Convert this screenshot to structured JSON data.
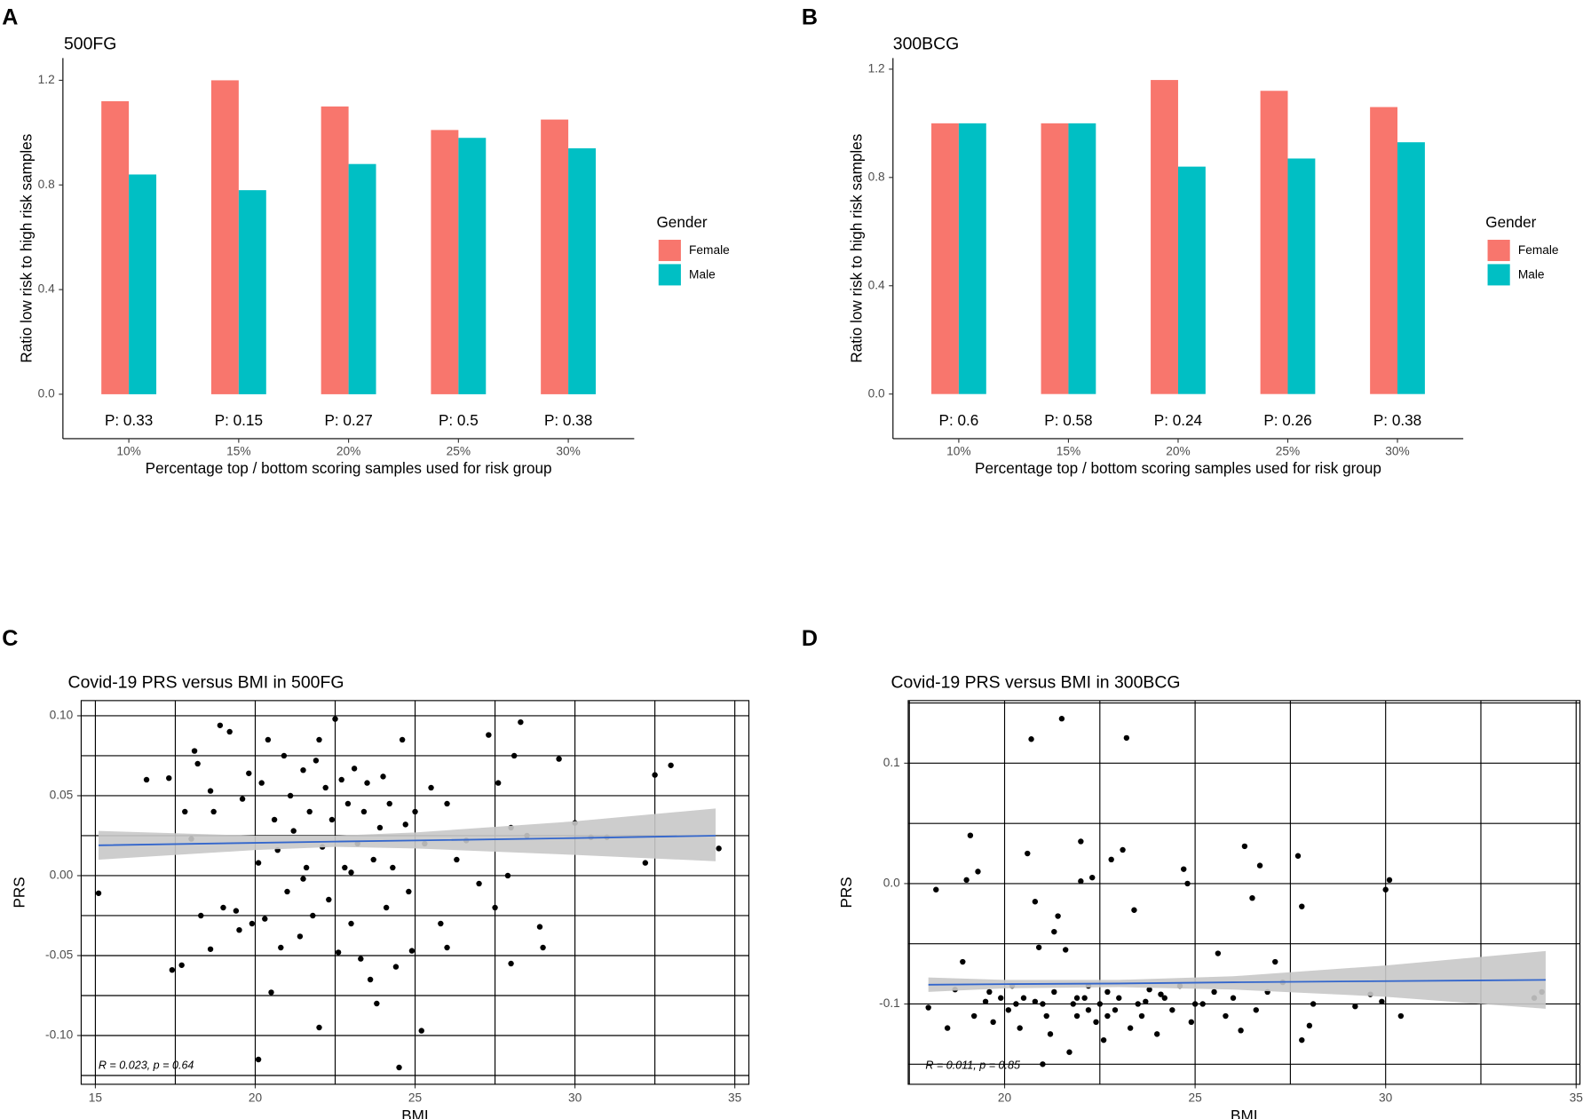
{
  "chart_data": [
    {
      "type": "bar",
      "panel": "A",
      "title": "500FG",
      "xlabel": "Percentage top / bottom scoring samples used for risk group",
      "ylabel": "Ratio low risk to high risk samples",
      "categories": [
        "10%",
        "15%",
        "20%",
        "25%",
        "30%"
      ],
      "series": [
        {
          "name": "Female",
          "color": "#f8766d",
          "values": [
            1.12,
            1.2,
            1.1,
            1.01,
            1.05
          ]
        },
        {
          "name": "Male",
          "color": "#00bfc4",
          "values": [
            0.84,
            0.78,
            0.88,
            0.98,
            0.94
          ]
        }
      ],
      "annotations": [
        "P: 0.33",
        "P: 0.15",
        "P: 0.27",
        "P: 0.5",
        "P: 0.38"
      ],
      "legend_title": "Gender",
      "legend": "right",
      "ylim": [
        -0.17,
        1.285
      ],
      "yticks": [
        {
          "value": 0,
          "label": "0.0"
        },
        {
          "value": 0.4,
          "label": "0.4"
        },
        {
          "value": 0.8,
          "label": "0.8"
        },
        {
          "value": 1.2,
          "label": "1.2"
        }
      ]
    },
    {
      "type": "bar",
      "panel": "B",
      "title": "300BCG",
      "xlabel": "Percentage top / bottom scoring samples used for risk group",
      "ylabel": "Ratio low risk to high risk samples",
      "categories": [
        "10%",
        "15%",
        "20%",
        "25%",
        "30%"
      ],
      "series": [
        {
          "name": "Female",
          "color": "#f8766d",
          "values": [
            1.0,
            1.0,
            1.16,
            1.12,
            1.06
          ]
        },
        {
          "name": "Male",
          "color": "#00bfc4",
          "values": [
            1.0,
            1.0,
            0.84,
            0.87,
            0.93
          ]
        }
      ],
      "annotations": [
        "P: 0.6",
        "P: 0.58",
        "P: 0.24",
        "P: 0.26",
        "P: 0.38"
      ],
      "legend_title": "Gender",
      "legend": "right",
      "ylim": [
        -0.165,
        1.241
      ],
      "yticks": [
        {
          "value": 0,
          "label": "0.0"
        },
        {
          "value": 0.4,
          "label": "0.4"
        },
        {
          "value": 0.8,
          "label": "0.8"
        },
        {
          "value": 1.2,
          "label": "1.2"
        }
      ]
    },
    {
      "type": "scatter",
      "panel": "C",
      "title": "Covid-19 PRS versus BMI in 500FG",
      "xlabel": "BMI",
      "ylabel": "PRS",
      "annotation": "R = 0.023, p = 0.64",
      "color": "#000000",
      "fit_color": "#3366cc",
      "band_color": "#c8c8c8",
      "grid": true,
      "xlim": [
        14.556,
        35.44
      ],
      "ylim": [
        -0.1305,
        0.1095
      ],
      "xticks": [
        15,
        20,
        25,
        30,
        35
      ],
      "xminor": [
        17.5,
        22.5,
        27.5,
        32.5
      ],
      "yticks": [
        {
          "value": -0.1,
          "label": "-0.10"
        },
        {
          "value": -0.05,
          "label": "-0.05"
        },
        {
          "value": 0,
          "label": "0.00"
        },
        {
          "value": 0.05,
          "label": "0.05"
        },
        {
          "value": 0.1,
          "label": "0.10"
        }
      ],
      "yminor": [
        -0.125,
        -0.075,
        -0.025,
        0.025,
        0.075
      ],
      "x": [
        15.1,
        16.6,
        17.3,
        17.4,
        17.7,
        17.8,
        18.0,
        18.1,
        18.2,
        18.3,
        18.6,
        18.6,
        18.9,
        19.2,
        18.7,
        19.0,
        19.4,
        19.5,
        19.6,
        19.8,
        19.9,
        20.1,
        20.2,
        20.3,
        20.4,
        20.5,
        20.6,
        20.7,
        20.8,
        20.9,
        21.0,
        21.1,
        21.2,
        21.4,
        21.5,
        21.6,
        21.7,
        21.8,
        21.9,
        22.0,
        22.1,
        22.2,
        22.3,
        22.4,
        22.5,
        22.6,
        22.7,
        22.8,
        22.9,
        23.0,
        23.1,
        23.2,
        23.3,
        23.4,
        23.5,
        23.6,
        23.7,
        23.8,
        23.9,
        24.0,
        24.1,
        24.2,
        24.3,
        24.4,
        24.5,
        24.6,
        24.7,
        24.8,
        24.9,
        25.0,
        25.2,
        25.3,
        25.5,
        25.8,
        26.0,
        26.3,
        26.6,
        27.0,
        27.3,
        27.5,
        27.6,
        28.0,
        28.1,
        28.3,
        28.5,
        28.9,
        29.0,
        29.5,
        30.0,
        30.5,
        31.0,
        32.2,
        32.5,
        33.0,
        34.5,
        20.1,
        21.5,
        22.0,
        23.0,
        27.9,
        28.0,
        26.0
      ],
      "y": [
        -0.011,
        0.06,
        0.061,
        -0.059,
        -0.056,
        0.04,
        0.023,
        0.078,
        0.07,
        -0.025,
        0.053,
        -0.046,
        0.094,
        0.09,
        0.04,
        -0.02,
        -0.022,
        -0.034,
        0.048,
        0.064,
        -0.03,
        0.008,
        0.058,
        -0.027,
        0.085,
        -0.073,
        0.035,
        0.016,
        -0.045,
        0.075,
        -0.01,
        0.05,
        0.028,
        -0.038,
        0.066,
        0.005,
        0.04,
        -0.025,
        0.072,
        -0.095,
        0.018,
        0.055,
        -0.015,
        0.035,
        0.098,
        -0.048,
        0.06,
        0.005,
        0.045,
        -0.03,
        0.067,
        0.02,
        -0.052,
        0.04,
        0.058,
        -0.065,
        0.01,
        -0.08,
        0.03,
        0.062,
        -0.02,
        0.045,
        0.005,
        -0.057,
        -0.12,
        0.085,
        0.032,
        -0.01,
        -0.047,
        0.04,
        -0.097,
        0.02,
        0.055,
        -0.03,
        0.045,
        0.01,
        0.022,
        -0.005,
        0.088,
        -0.02,
        0.058,
        0.03,
        0.075,
        0.096,
        0.025,
        -0.032,
        -0.045,
        0.073,
        0.033,
        0.024,
        0.024,
        0.008,
        0.063,
        0.069,
        0.017,
        -0.115,
        -0.002,
        0.085,
        0.002,
        0.0,
        -0.055,
        -0.045
      ],
      "fit": {
        "x": [
          15.1,
          20,
          22.5,
          25,
          30,
          34.4
        ],
        "y": [
          0.019,
          0.0205,
          0.0213,
          0.022,
          0.0235,
          0.025
        ],
        "lower": [
          0.01,
          0.016,
          0.018,
          0.017,
          0.013,
          0.009
        ],
        "upper": [
          0.028,
          0.025,
          0.025,
          0.027,
          0.034,
          0.042
        ]
      }
    },
    {
      "type": "scatter",
      "panel": "D",
      "title": "Covid-19 PRS versus BMI in 300BCG",
      "xlabel": "BMI",
      "ylabel": "PRS",
      "annotation": "R = 0.011, p = 0.85",
      "color": "#000000",
      "fit_color": "#3366cc",
      "band_color": "#c8c8c8",
      "grid": true,
      "xlim": [
        17.47,
        35.1
      ],
      "ylim": [
        -0.1667,
        0.152
      ],
      "xticks": [
        20,
        25,
        30,
        35
      ],
      "xminor": [
        17.5,
        22.5,
        27.5,
        32.5
      ],
      "yticks": [
        -0.1,
        {
          "value": 0,
          "label": "0.0"
        },
        0.1
      ],
      "yminor": [
        -0.15,
        -0.05,
        0.05,
        0.15
      ],
      "x": [
        18.0,
        18.2,
        18.5,
        18.7,
        18.9,
        19.0,
        19.1,
        19.2,
        19.3,
        19.5,
        19.7,
        19.9,
        20.1,
        20.2,
        20.4,
        20.5,
        20.6,
        20.7,
        20.8,
        20.9,
        21.0,
        21.1,
        21.2,
        21.3,
        21.4,
        21.5,
        21.6,
        21.7,
        21.8,
        21.9,
        22.0,
        22.1,
        22.2,
        22.3,
        22.4,
        22.5,
        22.6,
        22.7,
        22.8,
        22.9,
        23.0,
        23.1,
        23.2,
        23.3,
        23.4,
        23.5,
        23.6,
        23.8,
        24.0,
        24.2,
        24.4,
        24.6,
        24.7,
        24.8,
        24.9,
        25.2,
        25.5,
        25.6,
        25.8,
        26.0,
        26.2,
        26.3,
        26.5,
        26.6,
        26.7,
        26.9,
        27.1,
        27.3,
        27.7,
        27.8,
        28.0,
        28.1,
        29.2,
        29.6,
        29.9,
        30.0,
        30.1,
        30.4,
        33.9,
        34.1,
        21.0,
        20.3,
        21.9,
        22.7,
        23.7,
        24.1,
        25.0,
        19.6,
        20.8,
        22.2,
        27.8,
        21.3,
        22.0
      ],
      "y": [
        -0.103,
        -0.005,
        -0.12,
        -0.088,
        -0.065,
        0.003,
        0.04,
        -0.11,
        0.01,
        -0.098,
        -0.115,
        -0.095,
        -0.105,
        -0.085,
        -0.12,
        -0.095,
        0.025,
        0.12,
        -0.015,
        -0.053,
        -0.1,
        -0.11,
        -0.125,
        -0.09,
        -0.027,
        0.137,
        -0.055,
        -0.14,
        -0.1,
        -0.11,
        0.035,
        -0.095,
        -0.085,
        0.005,
        -0.115,
        -0.1,
        -0.13,
        -0.09,
        0.02,
        -0.105,
        -0.095,
        0.028,
        0.121,
        -0.12,
        -0.022,
        -0.1,
        -0.11,
        -0.088,
        -0.125,
        -0.095,
        -0.105,
        -0.085,
        0.012,
        0.0,
        -0.115,
        -0.1,
        -0.09,
        -0.058,
        -0.11,
        -0.095,
        -0.122,
        0.031,
        -0.012,
        -0.105,
        0.015,
        -0.09,
        -0.065,
        -0.082,
        0.023,
        -0.13,
        -0.118,
        -0.1,
        -0.102,
        -0.092,
        -0.098,
        -0.005,
        0.003,
        -0.11,
        -0.095,
        -0.09,
        -0.15,
        -0.1,
        -0.095,
        -0.11,
        -0.098,
        -0.092,
        -0.1,
        -0.09,
        -0.098,
        -0.105,
        -0.019,
        -0.04,
        0.002
      ],
      "fit": {
        "x": [
          18.0,
          20,
          23,
          26,
          30,
          34.2
        ],
        "y": [
          -0.084,
          -0.0835,
          -0.083,
          -0.082,
          -0.081,
          -0.08
        ],
        "lower": [
          -0.09,
          -0.087,
          -0.086,
          -0.088,
          -0.094,
          -0.104
        ],
        "upper": [
          -0.078,
          -0.08,
          -0.08,
          -0.077,
          -0.068,
          -0.056
        ]
      }
    }
  ]
}
